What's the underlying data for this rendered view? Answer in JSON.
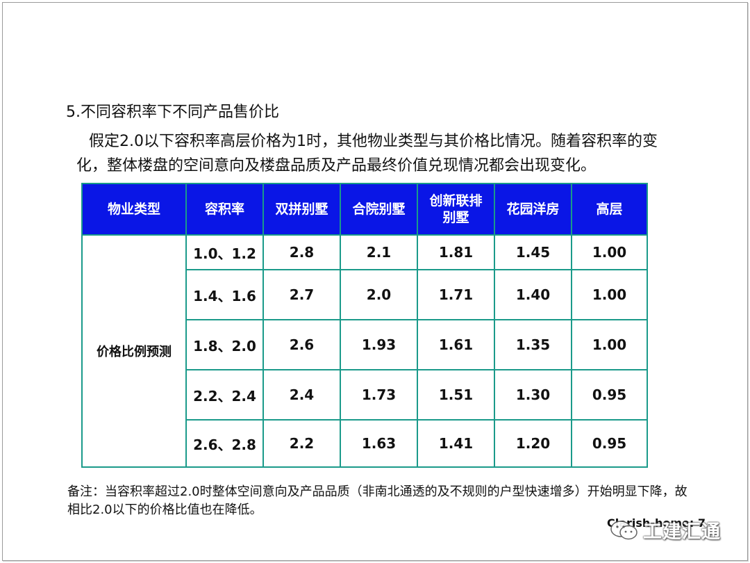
{
  "heading": "5.不同容积率下不同产品售价比",
  "intro": "假定2.0以下容积率高层价格为1时，其他物业类型与其价格比情况。随着容积率的变化，整体楼盘的空间意向及楼盘品质及产品最终价值兑现情况都会出现变化。",
  "table": {
    "headers": [
      "物业类型",
      "容积率",
      "双拼别墅",
      "合院别墅",
      "创新联排别墅",
      "花园洋房",
      "高层"
    ],
    "row_label": "价格比例预测",
    "rows": [
      [
        "1.0、1.2",
        "2.8",
        "2.1",
        "1.81",
        "1.45",
        "1.00"
      ],
      [
        "1.4、1.6",
        "2.7",
        "2.0",
        "1.71",
        "1.40",
        "1.00"
      ],
      [
        "1.8、2.0",
        "2.6",
        "1.93",
        "1.61",
        "1.35",
        "1.00"
      ],
      [
        "2.2、2.4",
        "2.4",
        "1.73",
        "1.51",
        "1.30",
        "0.95"
      ],
      [
        "2.6、2.8",
        "2.2",
        "1.63",
        "1.41",
        "1.20",
        "0.95"
      ]
    ]
  },
  "note": "备注：当容积率超过2.0时整体空间意向及产品品质（非南北通透的及不规则的户型快速增多）开始明显下降，故相比2.0以下的价格比值也在降低。",
  "footer_id": "Clarish-home: 7",
  "watermark": {
    "icon": "wechat-icon",
    "text": "工建汇通"
  }
}
